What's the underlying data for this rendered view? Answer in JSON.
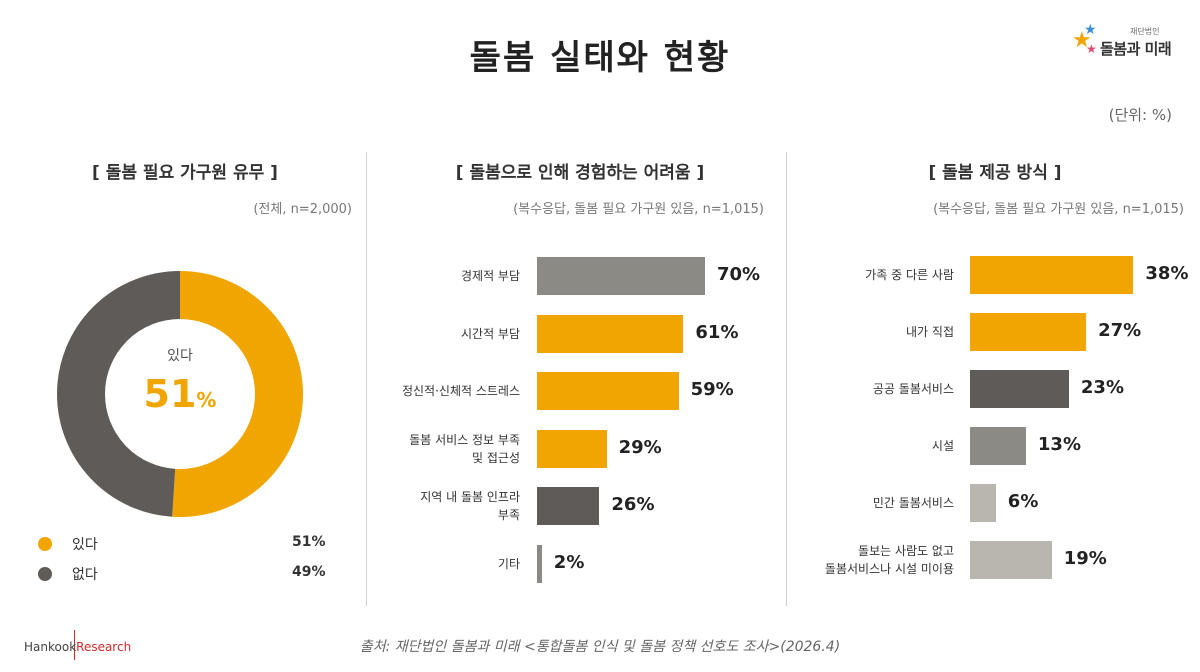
{
  "header": {
    "title": "돌봄 실태와 현황",
    "unit": "(단위: %)",
    "logo_name": "돌봄과 미래",
    "logo_sub": "재단법인"
  },
  "footer": {
    "source": "출처: 재단법인 돌봄과 미래 <통합돌봄 인식 및 돌봄 정책 선호도 조사>(2026.4)",
    "brand_a": "Hankook",
    "brand_b": "Research"
  },
  "chart_data": [
    {
      "type": "pie",
      "title": "[ 돌봄 필요 가구원 유무 ]",
      "note": "(전체, n=2,000)",
      "center_label": "있다",
      "center_value": "51",
      "center_unit": "%",
      "slices": [
        {
          "label": "있다",
          "value": 51,
          "value_text": "51%",
          "color": "#F0A500"
        },
        {
          "label": "없다",
          "value": 49,
          "value_text": "49%",
          "color": "#5E5B58"
        }
      ]
    },
    {
      "type": "bar",
      "title": "[ 돌봄으로 인해 경험하는 어려움 ]",
      "note": "(복수응답, 돌봄 필요 가구원 있음, n=1,015)",
      "categories": [
        "경제적 부담",
        "시간적 부담",
        "정신적·신체적 스트레스",
        "돌봄 서비스 정보 부족\n및 접근성",
        "지역 내 돌봄 인프라\n부족",
        "기타"
      ],
      "values": [
        70,
        61,
        59,
        29,
        26,
        2
      ],
      "value_labels": [
        "70%",
        "61%",
        "59%",
        "29%",
        "26%",
        "2%"
      ],
      "colors": [
        "#8C8A85",
        "#F0A500",
        "#F0A500",
        "#F0A500",
        "#5E5B58",
        "#8C8A85"
      ]
    },
    {
      "type": "bar",
      "title": "[ 돌봄 제공 방식 ]",
      "note": "(복수응답, 돌봄 필요 가구원 있음, n=1,015)",
      "categories": [
        "가족 중 다른 사람",
        "내가 직접",
        "공공 돌봄서비스",
        "시설",
        "민간 돌봄서비스",
        "돌보는 사람도 없고\n돌봄서비스나 시설 미이용"
      ],
      "values": [
        38,
        27,
        23,
        13,
        6,
        19
      ],
      "value_labels": [
        "38%",
        "27%",
        "23%",
        "13%",
        "6%",
        "19%"
      ],
      "colors": [
        "#F0A500",
        "#F0A500",
        "#5E5B58",
        "#8C8A85",
        "#B9B6B0",
        "#B9B6B0"
      ]
    }
  ]
}
